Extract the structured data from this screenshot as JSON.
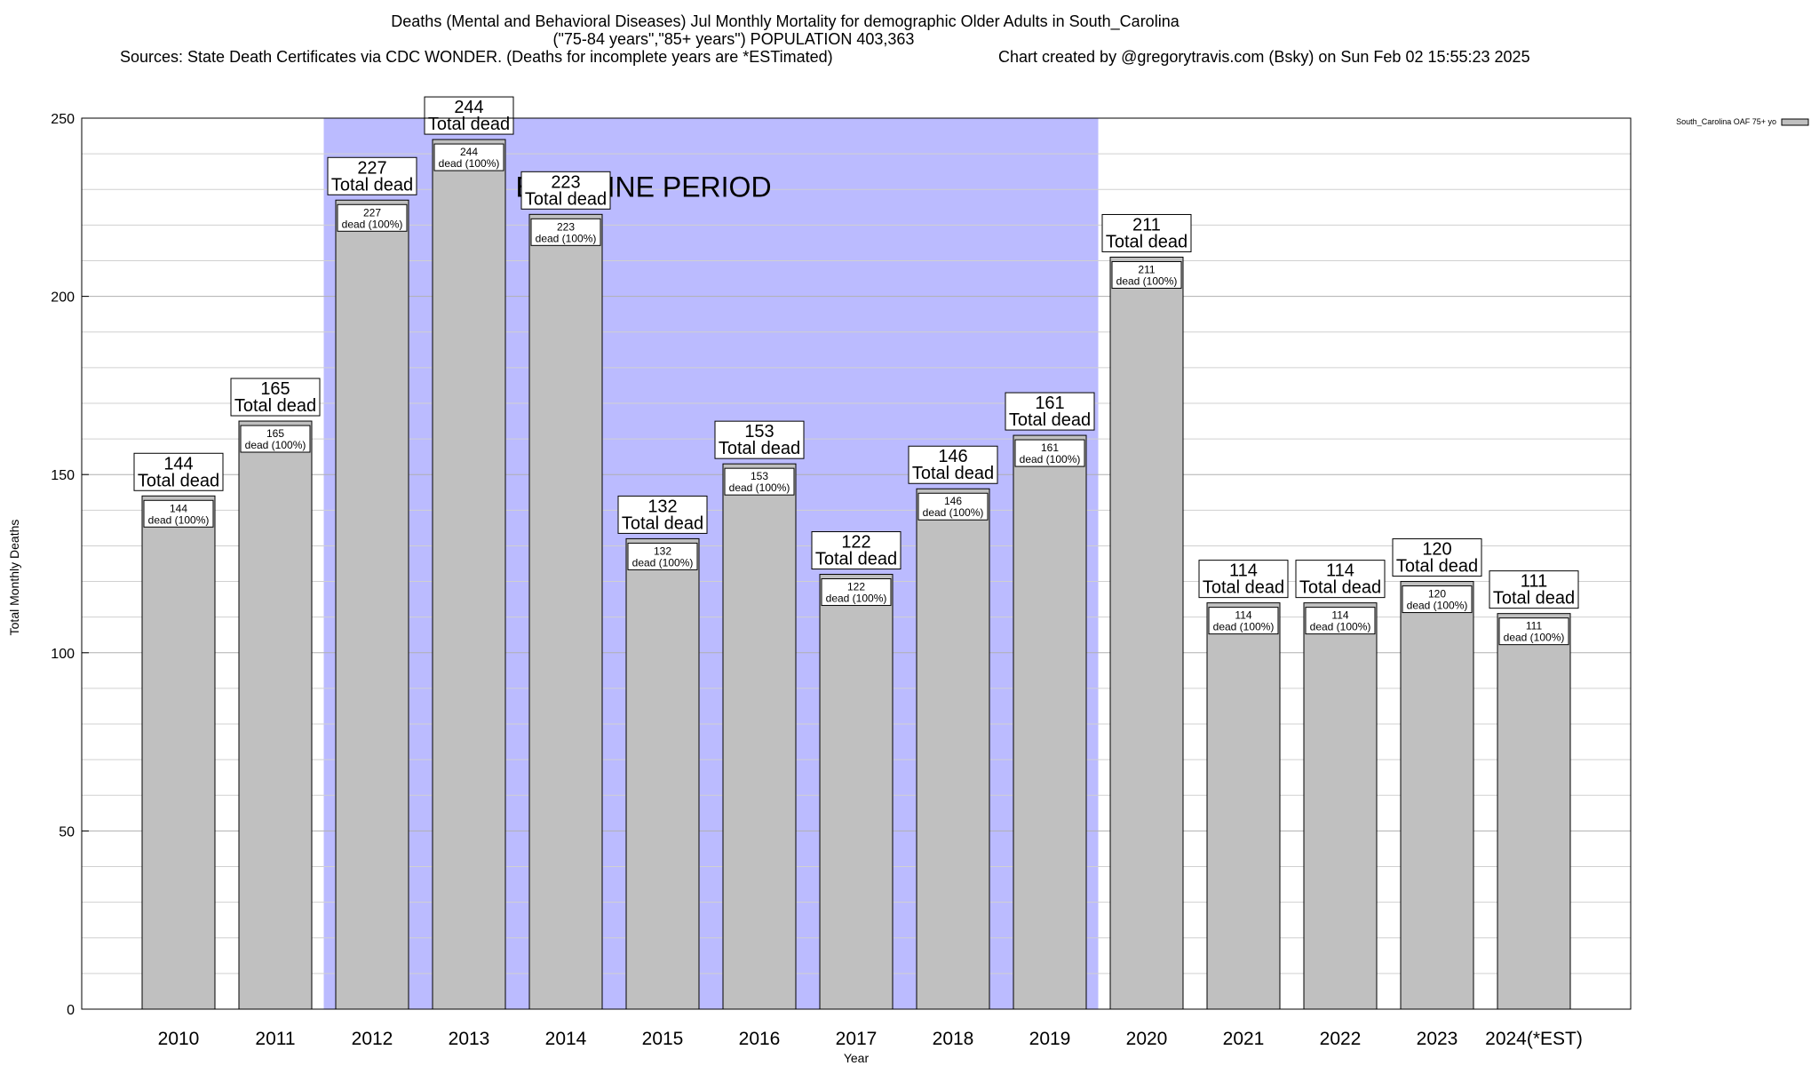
{
  "chart_data": {
    "type": "bar",
    "title_lines": [
      "Deaths (Mental and Behavioral Diseases) Jul Monthly Mortality for demographic Older Adults in South_Carolina",
      "(\"75-84 years\",\"85+ years\") POPULATION 403,363"
    ],
    "sources": "Sources: State Death Certificates via CDC WONDER. (Deaths for incomplete years are *ESTimated)",
    "credit": "Chart created by @gregorytravis.com (Bsky) on Sun Feb 02 15:55:23 2025",
    "xlabel": "Year",
    "ylabel": "Total Monthly Deaths",
    "ylim": [
      0,
      250
    ],
    "y_ticks": [
      0,
      50,
      100,
      150,
      200,
      250
    ],
    "y_minor_step": 10,
    "grid": true,
    "categories": [
      "2010",
      "2011",
      "2012",
      "2013",
      "2014",
      "2015",
      "2016",
      "2017",
      "2018",
      "2019",
      "2020",
      "2021",
      "2022",
      "2023",
      "2024(*EST)"
    ],
    "series": [
      {
        "name": "South_Carolina OAF 75+ yo",
        "color": "#c0c0c0",
        "values": [
          144,
          165,
          227,
          244,
          223,
          132,
          153,
          122,
          146,
          161,
          211,
          114,
          114,
          120,
          111
        ]
      }
    ],
    "bar_label_suffix": "Total dead",
    "inner_label_suffix": "dead (100%)",
    "baseline": {
      "label": "BASELINE PERIOD",
      "start": "2012",
      "end": "2019",
      "color": "#bbbbff"
    },
    "legend_position": "top-right"
  }
}
